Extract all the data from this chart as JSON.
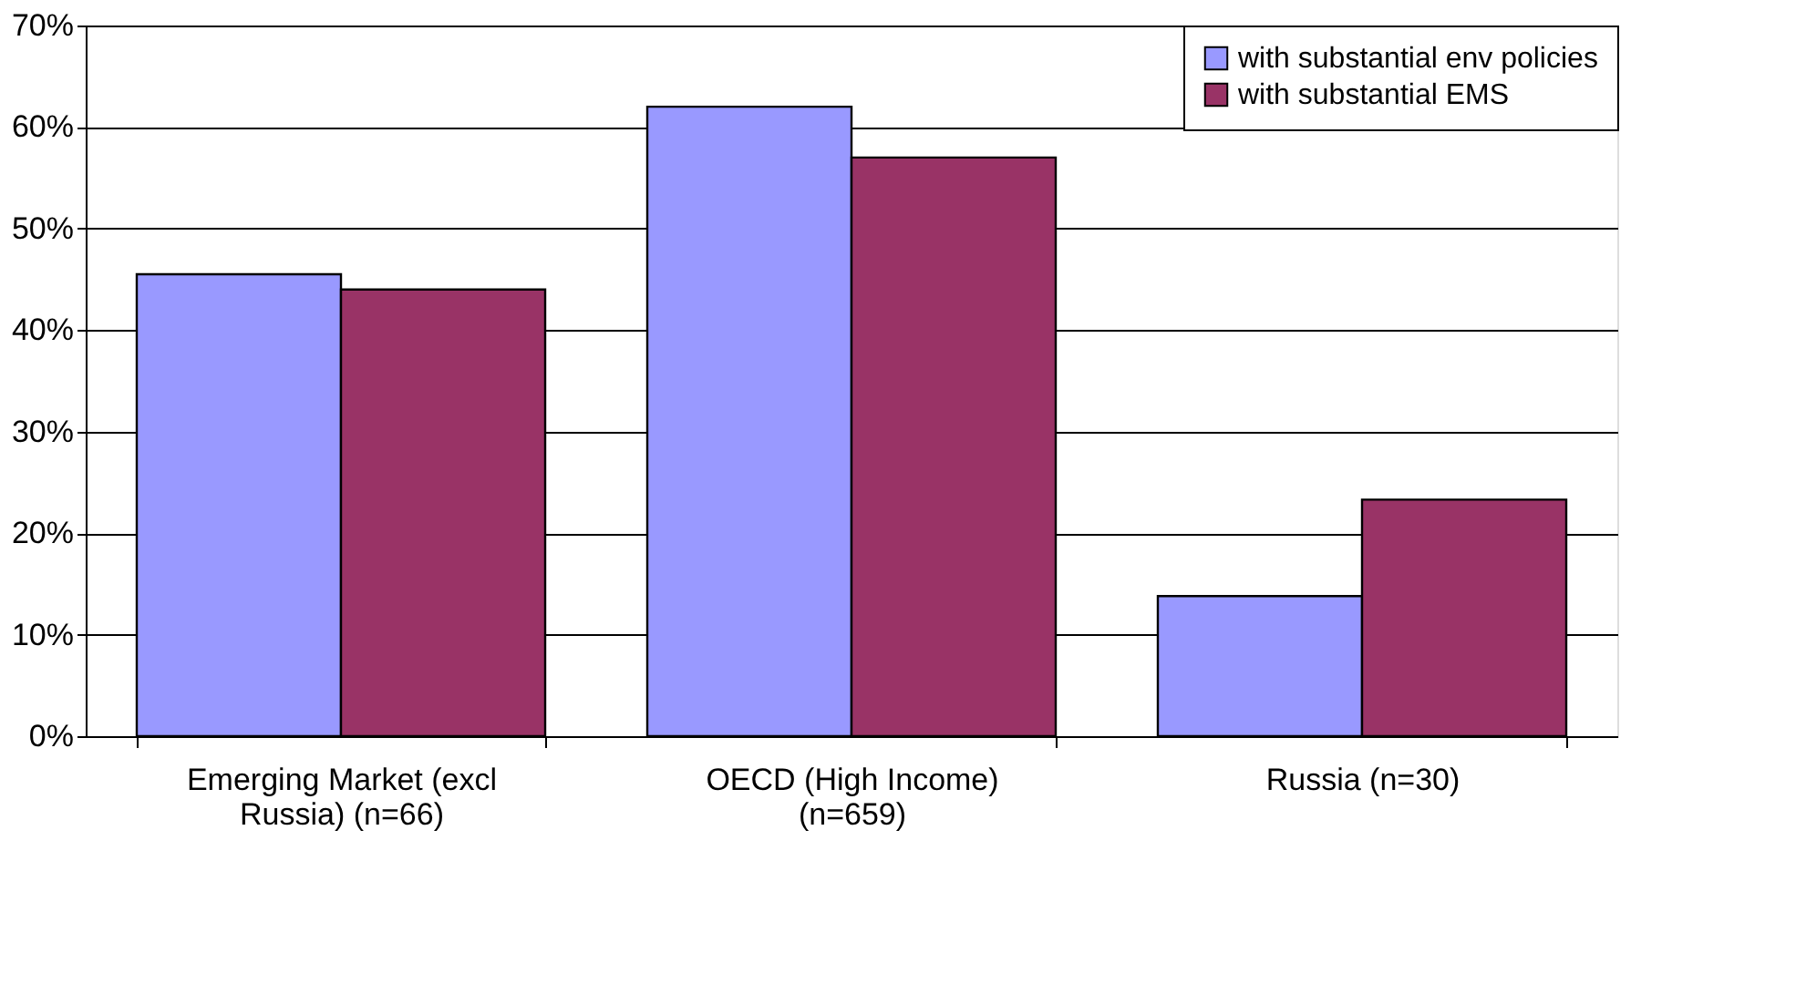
{
  "chart_data": {
    "type": "bar",
    "categories": [
      "Emerging Market (excl Russia) (n=66)",
      "OECD (High Income) (n=659)",
      "Russia (n=30)"
    ],
    "series": [
      {
        "name": "with substantial env policies",
        "color": "#9999ff",
        "values": [
          45.5,
          62,
          13.8
        ]
      },
      {
        "name": "with substantial EMS",
        "color": "#993366",
        "values": [
          44,
          57,
          23.3
        ]
      }
    ],
    "ylim": [
      0,
      70
    ],
    "yticks": [
      {
        "value": 0,
        "label": "0%"
      },
      {
        "value": 10,
        "label": "10%"
      },
      {
        "value": 20,
        "label": "20%"
      },
      {
        "value": 30,
        "label": "30%"
      },
      {
        "value": 40,
        "label": "40%"
      },
      {
        "value": 50,
        "label": "50%"
      },
      {
        "value": 60,
        "label": "60%"
      },
      {
        "value": 70,
        "label": "70%"
      }
    ],
    "grid": "y",
    "legend": "top right"
  }
}
